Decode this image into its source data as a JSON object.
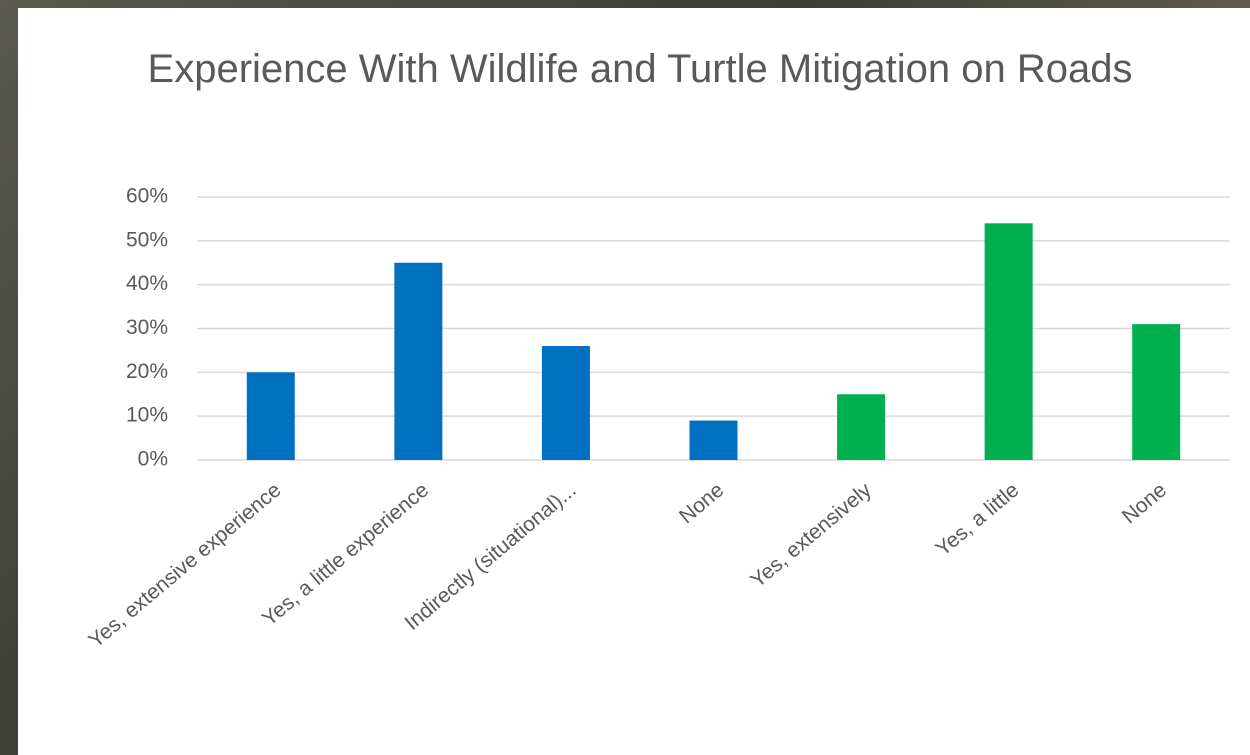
{
  "chart_data": {
    "type": "bar",
    "title": "Experience With Wildlife and Turtle Mitigation on Roads",
    "categories": [
      "Yes, extensive experience",
      "Yes, a little experience",
      "Indirectly (situational)...",
      "None",
      "Yes, extensively",
      "Yes, a little",
      "None"
    ],
    "values": [
      20,
      45,
      26,
      9,
      15,
      54,
      31
    ],
    "colors": [
      "#0070c0",
      "#0070c0",
      "#0070c0",
      "#0070c0",
      "#00b050",
      "#00b050",
      "#00b050"
    ],
    "ylim": [
      0,
      60
    ],
    "yticks": [
      {
        "value": 0,
        "label": "0%"
      },
      {
        "value": 10,
        "label": "10%"
      },
      {
        "value": 20,
        "label": "20%"
      },
      {
        "value": 30,
        "label": "30%"
      },
      {
        "value": 40,
        "label": "40%"
      },
      {
        "value": 50,
        "label": "50%"
      },
      {
        "value": 60,
        "label": "60%"
      }
    ],
    "grid": true
  }
}
